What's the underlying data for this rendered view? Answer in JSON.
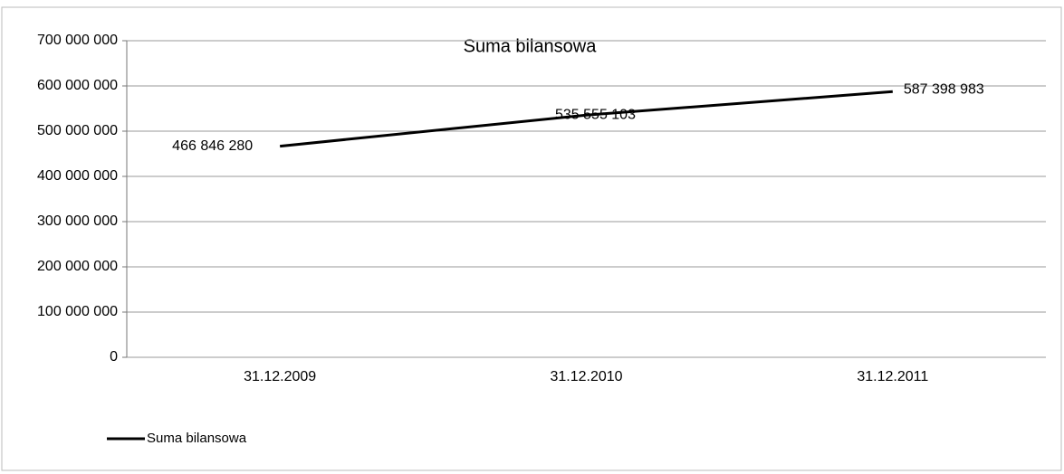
{
  "chart_data": {
    "type": "line",
    "title": "Suma bilansowa",
    "categories": [
      "31.12.2009",
      "31.12.2010",
      "31.12.2011"
    ],
    "series": [
      {
        "name": "Suma bilansowa",
        "color": "#000000",
        "values": [
          466846280,
          535555103,
          587398983
        ],
        "value_labels": [
          "466 846 280",
          "535 555 103",
          "587 398 983"
        ]
      }
    ],
    "ylim": [
      0,
      700000000
    ],
    "yticks": [
      0,
      {
        "value": 100000000,
        "label": "100 000 000"
      },
      {
        "value": 200000000,
        "label": "200 000 000"
      },
      {
        "value": 300000000,
        "label": "300 000 000"
      },
      {
        "value": 400000000,
        "label": "400 000 000"
      },
      {
        "value": 500000000,
        "label": "500 000 000"
      },
      {
        "value": 600000000,
        "label": "600 000 000"
      },
      {
        "value": 700000000,
        "label": "700 000 000"
      }
    ],
    "grid": true,
    "legend": "bottom-left"
  }
}
